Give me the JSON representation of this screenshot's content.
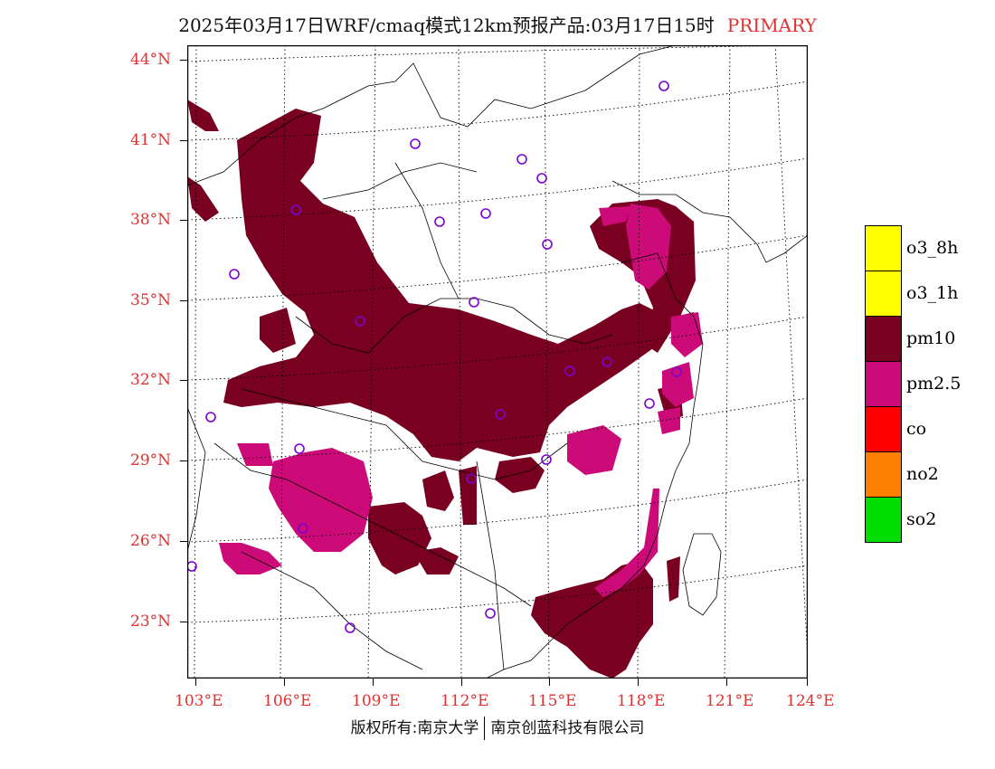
{
  "title": {
    "main": "2025年03月17日WRF/cmaq模式12km预报产品:03月17日15时",
    "tag": "PRIMARY"
  },
  "axes": {
    "lat_labels": [
      "44°N",
      "41°N",
      "38°N",
      "35°N",
      "32°N",
      "29°N",
      "26°N",
      "23°N"
    ],
    "lon_labels": [
      "103°E",
      "106°E",
      "109°E",
      "112°E",
      "115°E",
      "118°E",
      "121°E",
      "124°E"
    ]
  },
  "legend": [
    {
      "label": "o3_8h",
      "color": "#ffff00"
    },
    {
      "label": "o3_1h",
      "color": "#ffff00"
    },
    {
      "label": "pm10",
      "color": "#7a0022"
    },
    {
      "label": "pm2.5",
      "color": "#cc0a78"
    },
    {
      "label": "co",
      "color": "#ff0000"
    },
    {
      "label": "no2",
      "color": "#ff7f00"
    },
    {
      "label": "so2",
      "color": "#00dd00"
    }
  ],
  "footer": {
    "left": "版权所有:南京大学",
    "right": "南京创蓝科技有限公司"
  }
}
